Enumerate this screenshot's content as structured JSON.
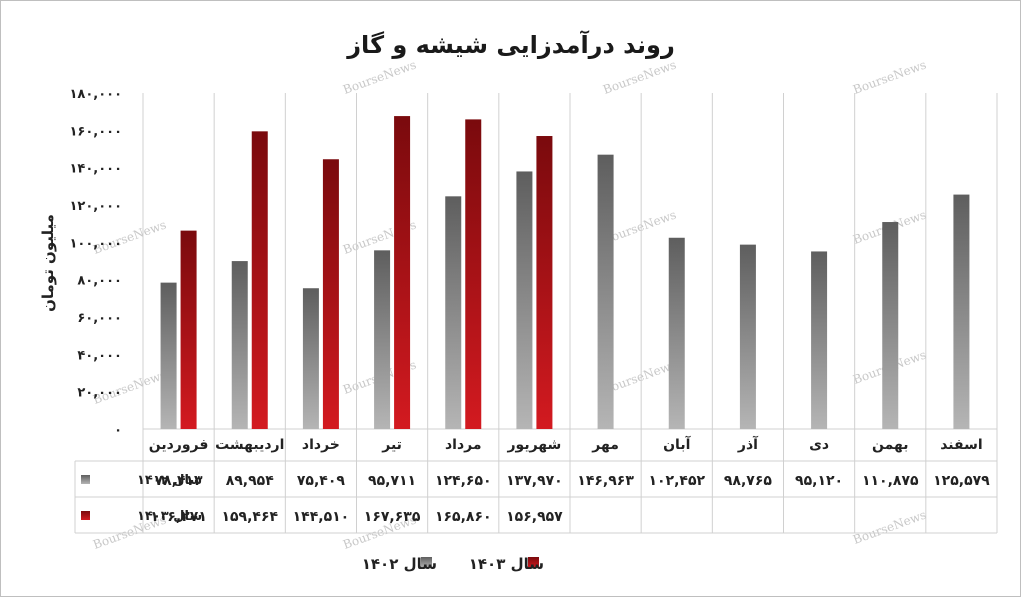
{
  "chart_data": {
    "type": "bar",
    "title": "روند درآمدزایی شیشه و گاز",
    "ylabel": "میلیون تومان",
    "ylim": [
      0,
      180000
    ],
    "yticks": [
      "۰",
      "۲۰,۰۰۰",
      "۴۰,۰۰۰",
      "۶۰,۰۰۰",
      "۸۰,۰۰۰",
      "۱۰۰,۰۰۰",
      "۱۲۰,۰۰۰",
      "۱۴۰,۰۰۰",
      "۱۶۰,۰۰۰",
      "۱۸۰,۰۰۰"
    ],
    "grid": "vertical",
    "legend_position": "bottom",
    "categories": [
      "فروردین",
      "اردیبهشت",
      "خرداد",
      "تیر",
      "مرداد",
      "شهریور",
      "مهر",
      "آبان",
      "آذر",
      "دی",
      "بهمن",
      "اسفند"
    ],
    "series": [
      {
        "name": "سال ۱۴۰۲",
        "color": "#7a7a7a",
        "values": [
          78413,
          89954,
          75409,
          95711,
          124650,
          137970,
          146963,
          102452,
          98765,
          95120,
          110875,
          125579
        ],
        "labels": [
          "۷۸,۴۱۳",
          "۸۹,۹۵۴",
          "۷۵,۴۰۹",
          "۹۵,۷۱۱",
          "۱۲۴,۶۵۰",
          "۱۳۷,۹۷۰",
          "۱۴۶,۹۶۳",
          "۱۰۲,۴۵۲",
          "۹۸,۷۶۵",
          "۹۵,۱۲۰",
          "۱۱۰,۸۷۵",
          "۱۲۵,۵۷۹"
        ]
      },
      {
        "name": "سال ۱۴۰۳",
        "color": "#b01217",
        "values": [
          106271,
          159464,
          144510,
          167635,
          165860,
          156957,
          null,
          null,
          null,
          null,
          null,
          null
        ],
        "labels": [
          "۱۰۶,۲۷۱",
          "۱۵۹,۴۶۴",
          "۱۴۴,۵۱۰",
          "۱۶۷,۶۳۵",
          "۱۶۵,۸۶۰",
          "۱۵۶,۹۵۷",
          "",
          "",
          "",
          "",
          "",
          ""
        ]
      }
    ],
    "watermark": "BourseNews"
  }
}
